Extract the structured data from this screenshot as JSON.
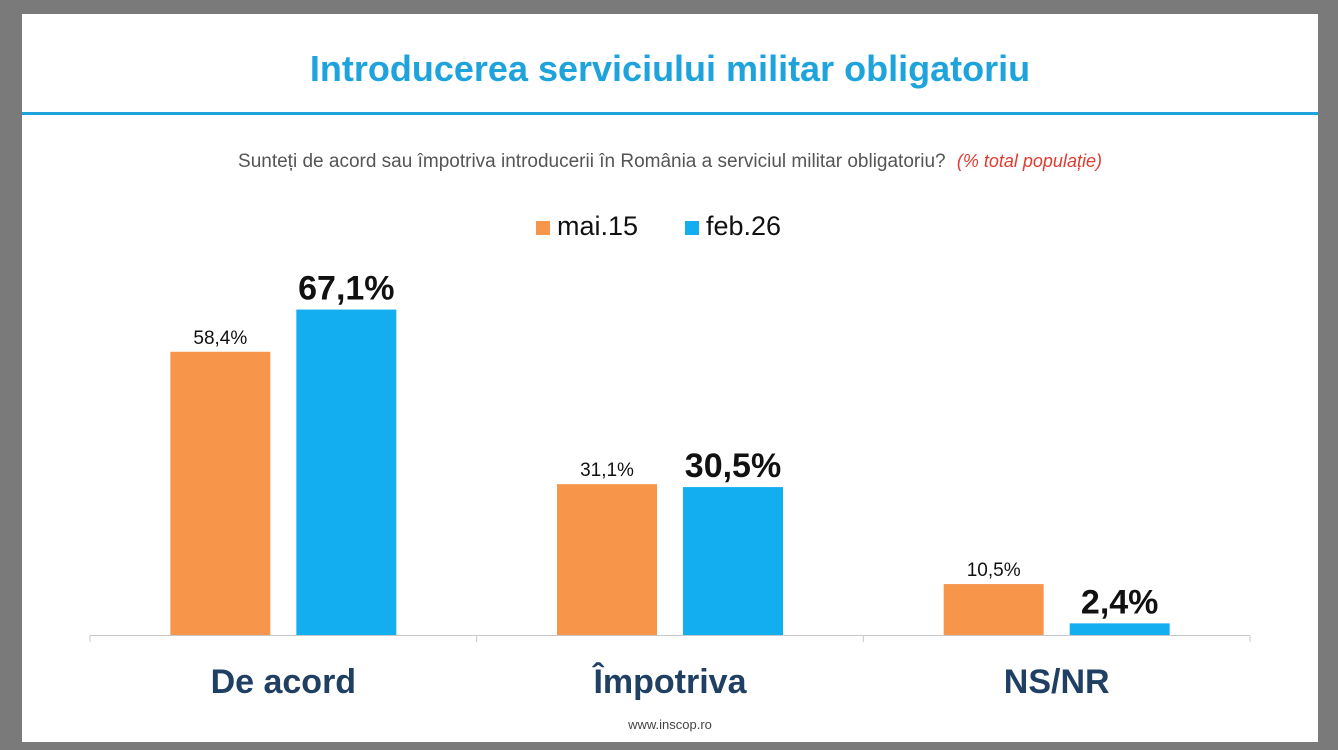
{
  "title": "Introducerea serviciului militar obligatoriu",
  "question": "Sunteți de acord sau împotriva introducerii în România a serviciul militar obligatoriu?",
  "question_note": "(% total populație)",
  "footer": "www.inscop.ro",
  "colors": {
    "accent": "#1fa3dc",
    "series1": "#f7954a",
    "series2": "#13aef0",
    "category_text": "#1f3f63"
  },
  "chart_data": {
    "type": "bar",
    "categories": [
      "De acord",
      "Împotriva",
      "NS/NR"
    ],
    "series": [
      {
        "name": "mai.15",
        "values": [
          58.4,
          31.1,
          10.5
        ],
        "labels": [
          "58,4%",
          "31,1%",
          "10,5%"
        ],
        "color": "#f7954a"
      },
      {
        "name": "feb.26",
        "values": [
          67.1,
          30.5,
          2.4
        ],
        "labels": [
          "67,1%",
          "30,5%",
          "2,4%"
        ],
        "color": "#13aef0"
      }
    ],
    "legend": "top-center",
    "grid": false,
    "ylim": [
      0,
      100
    ]
  }
}
